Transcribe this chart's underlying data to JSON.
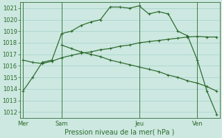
{
  "background_color": "#cce8e0",
  "grid_color": "#b0d8d0",
  "line_color": "#2d6a2d",
  "title": "Pression niveau de la mer( hPa )",
  "ylim": [
    1011.5,
    1021.5
  ],
  "yticks": [
    1012,
    1013,
    1014,
    1015,
    1016,
    1017,
    1018,
    1019,
    1020,
    1021
  ],
  "day_labels": [
    "Mer",
    "Sam",
    "Jeu",
    "Ven"
  ],
  "series1_x": [
    0,
    1,
    2,
    3,
    4,
    5,
    6,
    7,
    8,
    9,
    10,
    11,
    12,
    13,
    14,
    15,
    16,
    17,
    18,
    19,
    20
  ],
  "series1_y": [
    1013.8,
    1015.0,
    1016.3,
    1016.5,
    1018.8,
    1019.0,
    1019.5,
    1019.8,
    1020.0,
    1021.1,
    1021.1,
    1021.0,
    1021.2,
    1020.5,
    1020.7,
    1020.5,
    1019.0,
    1018.6,
    1016.5,
    1013.8,
    1011.8
  ],
  "series2_x": [
    0,
    1,
    2,
    3,
    4,
    5,
    6,
    7,
    8,
    9,
    10,
    11,
    12,
    13,
    14,
    15,
    16,
    17,
    18,
    19,
    20
  ],
  "series2_y": [
    1016.5,
    1016.3,
    1016.2,
    1016.4,
    1016.7,
    1016.9,
    1017.1,
    1017.2,
    1017.4,
    1017.5,
    1017.7,
    1017.8,
    1018.0,
    1018.1,
    1018.2,
    1018.3,
    1018.4,
    1018.5,
    1018.55,
    1018.5,
    1018.5
  ],
  "series3_x": [
    4,
    5,
    6,
    7,
    8,
    9,
    10,
    11,
    12,
    13,
    14,
    15,
    16,
    17,
    18,
    19,
    20
  ],
  "series3_y": [
    1017.8,
    1017.5,
    1017.2,
    1017.0,
    1016.8,
    1016.5,
    1016.3,
    1016.1,
    1015.9,
    1015.7,
    1015.5,
    1015.2,
    1015.0,
    1014.7,
    1014.5,
    1014.2,
    1013.8
  ],
  "vline_positions": [
    0,
    4,
    12,
    18
  ],
  "total_x": 20,
  "xlim": [
    -0.3,
    20.3
  ]
}
